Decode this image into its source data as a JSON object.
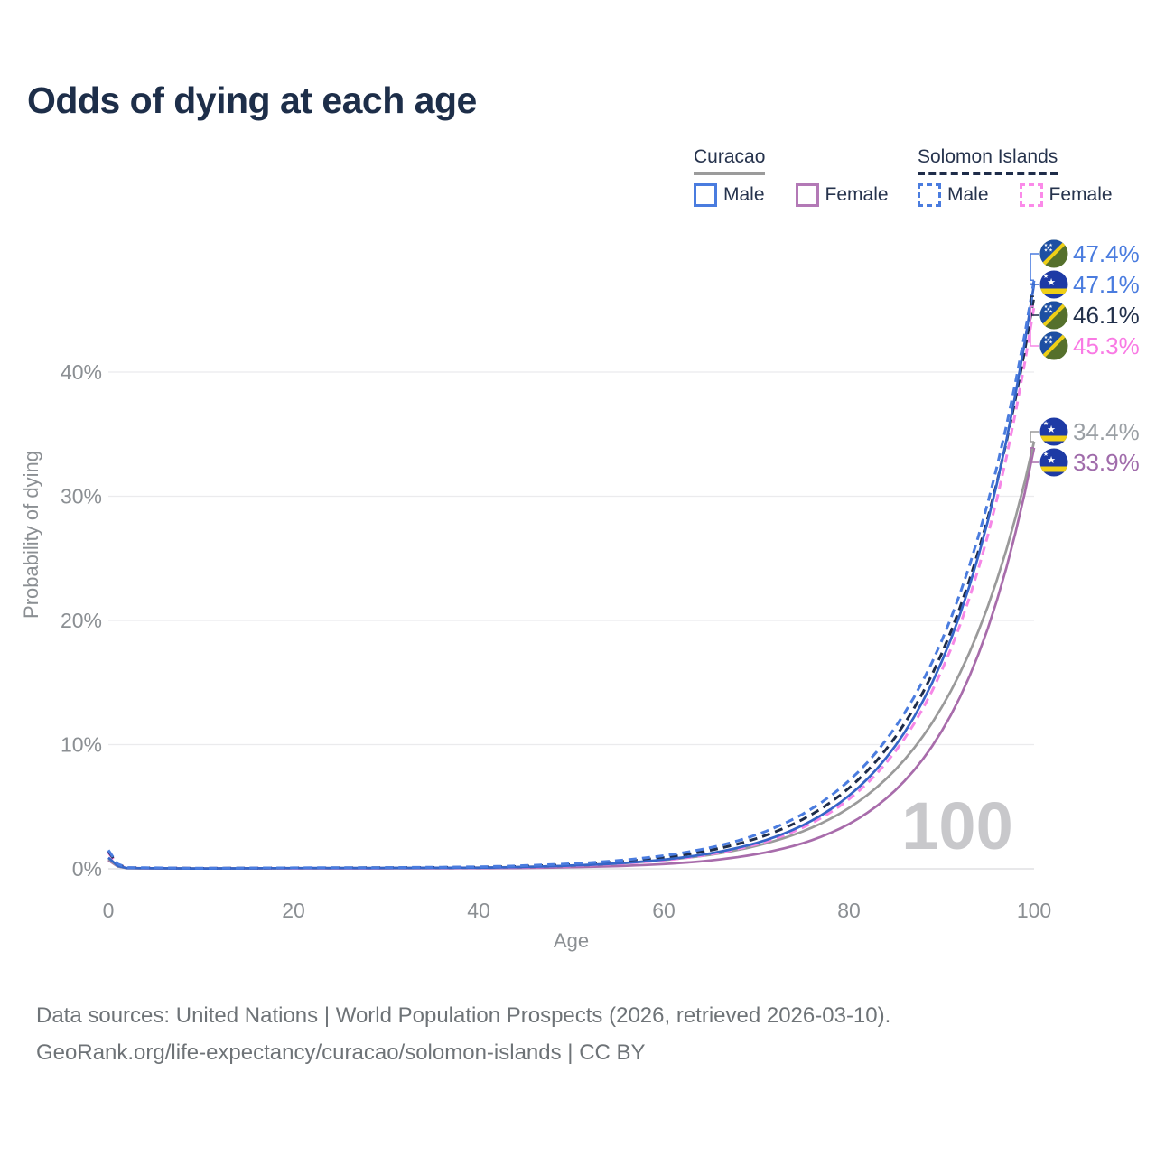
{
  "title": "Odds of dying at each age",
  "watermark_age": "100",
  "colors": {
    "title_text": "#1d2e49",
    "axis_text": "#8b8f93",
    "gridline": "#ebebed",
    "zero_line": "#e1e1e4",
    "watermark": "#c8c8cb",
    "curacao_male": "#3565c8",
    "curacao_female": "#a86cab",
    "curacao_both": "#9a9a9a",
    "solomon_male": "#4a7cdf",
    "solomon_female": "#f687e6",
    "solomon_both": "#1e2c49"
  },
  "legend": {
    "groups": [
      {
        "label": "Curacao",
        "line_style": "solid",
        "underline_color": "#9b9b9b",
        "items": [
          {
            "label": "Male",
            "color": "#4a7cdf",
            "style": "solid"
          },
          {
            "label": "Female",
            "color": "#b379b6",
            "style": "solid"
          }
        ]
      },
      {
        "label": "Solomon Islands",
        "line_style": "dashed",
        "underline_color": "#1e2c49",
        "items": [
          {
            "label": "Male",
            "color": "#4a7cdf",
            "style": "dashed"
          },
          {
            "label": "Female",
            "color": "#fb8ae9",
            "style": "dashed"
          }
        ]
      }
    ]
  },
  "chart_data": {
    "type": "line",
    "title": "Odds of dying at each age",
    "xlabel": "Age",
    "ylabel": "Probability of dying",
    "xlim": [
      0,
      100
    ],
    "ylim": [
      0,
      40
    ],
    "grid": "horizontal-only",
    "xticks": {
      "values": [
        0,
        20,
        40,
        60,
        80,
        100
      ],
      "labels": [
        "0",
        "20",
        "40",
        "60",
        "80",
        "100"
      ]
    },
    "yticks": {
      "values": [
        0,
        10,
        20,
        30,
        40
      ],
      "labels": [
        "0%",
        "10%",
        "20%",
        "30%",
        "40%"
      ]
    },
    "sample_ages": [
      0,
      2,
      10,
      20,
      30,
      40,
      45,
      50,
      55,
      60,
      65,
      70,
      75,
      80,
      85,
      90,
      95,
      100
    ],
    "series": [
      {
        "name": "Solomon Islands Male",
        "country": "Solomon Islands",
        "sex": "Male",
        "style": "dashed",
        "color": "#4a7cdf",
        "label_color": "#4a7cdf",
        "end_value_pct": 47.4,
        "end_label": "47.4%",
        "flag": "solomon",
        "values": [
          1.5,
          0.1,
          0.05,
          0.08,
          0.1,
          0.16,
          0.26,
          0.41,
          0.66,
          1.06,
          1.7,
          2.74,
          4.41,
          7.09,
          11.4,
          18.33,
          29.48,
          47.4
        ]
      },
      {
        "name": "Curacao Male",
        "country": "Curacao",
        "sex": "Male",
        "style": "solid",
        "color": "#3565c8",
        "label_color": "#4a7cdf",
        "end_value_pct": 47.1,
        "end_label": "47.1%",
        "flag": "curacao",
        "values": [
          0.9,
          0.06,
          0.03,
          0.06,
          0.07,
          0.09,
          0.15,
          0.26,
          0.44,
          0.74,
          1.24,
          2.08,
          3.5,
          5.89,
          9.89,
          16.65,
          28.0,
          47.1
        ]
      },
      {
        "name": "Solomon Islands Both sexes",
        "country": "Solomon Islands",
        "sex": "Both",
        "style": "dashed",
        "color": "#1e2c49",
        "label_color": "#22304b",
        "end_value_pct": 46.1,
        "end_label": "46.1%",
        "flag": "solomon",
        "values": [
          1.4,
          0.09,
          0.04,
          0.07,
          0.09,
          0.13,
          0.21,
          0.34,
          0.56,
          0.91,
          1.49,
          2.44,
          3.98,
          6.5,
          10.6,
          17.3,
          28.24,
          46.1
        ]
      },
      {
        "name": "Solomon Islands Female",
        "country": "Solomon Islands",
        "sex": "Female",
        "style": "dashed",
        "color": "#f687e6",
        "label_color": "#f97ae4",
        "end_value_pct": 45.3,
        "end_label": "45.3%",
        "flag": "solomon",
        "values": [
          1.3,
          0.08,
          0.04,
          0.06,
          0.07,
          0.09,
          0.14,
          0.24,
          0.41,
          0.69,
          1.17,
          1.97,
          3.32,
          5.6,
          9.45,
          15.93,
          26.86,
          45.3
        ]
      },
      {
        "name": "Curacao Both sexes",
        "country": "Curacao",
        "sex": "Both",
        "style": "solid",
        "color": "#9a9a9a",
        "label_color": "#9a9fa4",
        "end_value_pct": 34.4,
        "end_label": "34.4%",
        "flag": "curacao",
        "values": [
          0.8,
          0.05,
          0.03,
          0.05,
          0.06,
          0.1,
          0.16,
          0.26,
          0.43,
          0.7,
          1.13,
          1.85,
          3.01,
          4.9,
          7.97,
          12.98,
          21.13,
          34.4
        ]
      },
      {
        "name": "Curacao Female",
        "country": "Curacao",
        "sex": "Female",
        "style": "solid",
        "color": "#a86cab",
        "label_color": "#a06cab",
        "end_value_pct": 33.9,
        "end_label": "33.9%",
        "flag": "curacao",
        "values": [
          0.7,
          0.05,
          0.02,
          0.04,
          0.04,
          0.05,
          0.07,
          0.13,
          0.22,
          0.38,
          0.67,
          1.18,
          2.06,
          3.61,
          6.32,
          11.06,
          19.36,
          33.9
        ]
      }
    ]
  },
  "footer": {
    "line1": "Data sources: United Nations | World Population Prospects (2026, retrieved 2026-03-10).",
    "line2": "GeoRank.org/life-expectancy/curacao/solomon-islands | CC BY"
  }
}
